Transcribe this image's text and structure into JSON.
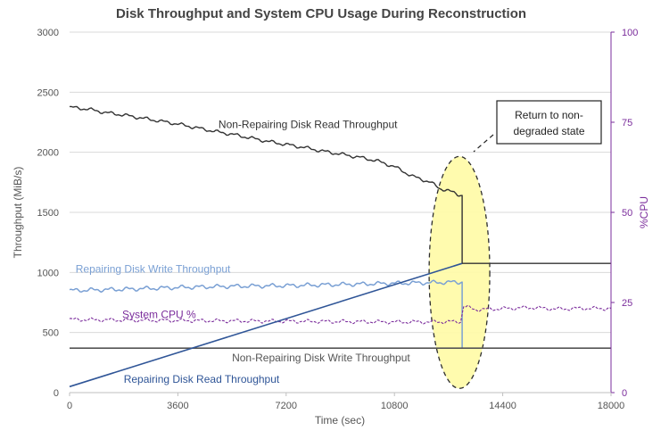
{
  "chart_data": {
    "type": "line",
    "title": "Disk Throughput and System CPU Usage During Reconstruction",
    "xlabel": "Time (sec)",
    "ylabel": "Throughput (MiB/s)",
    "y2label": "%CPU",
    "xlim": [
      0,
      18000
    ],
    "ylim": [
      0,
      3000
    ],
    "y2lim": [
      0,
      100
    ],
    "x_ticks": [
      0,
      3600,
      7200,
      10800,
      14400,
      18000
    ],
    "y_ticks": [
      0,
      500,
      1000,
      1500,
      2000,
      2500,
      3000
    ],
    "y2_ticks": [
      0,
      25,
      50,
      75,
      100
    ],
    "grid": "horizontal",
    "series": [
      {
        "name": "Non-Repairing Disk Read Throughput",
        "axis": "left",
        "color": "#333333",
        "points": [
          [
            0,
            2375
          ],
          [
            600,
            2360
          ],
          [
            1200,
            2330
          ],
          [
            1800,
            2310
          ],
          [
            2400,
            2285
          ],
          [
            3000,
            2260
          ],
          [
            3600,
            2235
          ],
          [
            4200,
            2205
          ],
          [
            4800,
            2175
          ],
          [
            5400,
            2150
          ],
          [
            6000,
            2120
          ],
          [
            6600,
            2090
          ],
          [
            7200,
            2065
          ],
          [
            7800,
            2040
          ],
          [
            8400,
            2010
          ],
          [
            9000,
            1985
          ],
          [
            9600,
            1960
          ],
          [
            10200,
            1930
          ],
          [
            10800,
            1880
          ],
          [
            11400,
            1800
          ],
          [
            12000,
            1750
          ],
          [
            12300,
            1700
          ],
          [
            12600,
            1680
          ],
          [
            12900,
            1650
          ],
          [
            13000,
            1645
          ],
          [
            13050,
            1640
          ],
          [
            13050,
            1075
          ],
          [
            18000,
            1075
          ]
        ],
        "label_pos": [
          4950,
          2200
        ]
      },
      {
        "name": "Repairing Disk Write Throughput",
        "axis": "left",
        "color": "#7aa0d4",
        "points": [
          [
            0,
            850
          ],
          [
            1800,
            860
          ],
          [
            3600,
            875
          ],
          [
            5400,
            885
          ],
          [
            7200,
            890
          ],
          [
            9000,
            900
          ],
          [
            10800,
            910
          ],
          [
            12000,
            915
          ],
          [
            13000,
            920
          ],
          [
            13050,
            920
          ],
          [
            13050,
            370
          ]
        ],
        "label_pos": [
          200,
          1000
        ]
      },
      {
        "name": "System CPU %",
        "axis": "right",
        "color": "#7b2d9c",
        "points": [
          [
            0,
            20.3
          ],
          [
            1800,
            20.1
          ],
          [
            3600,
            20.0
          ],
          [
            5400,
            19.9
          ],
          [
            7200,
            19.8
          ],
          [
            9000,
            19.7
          ],
          [
            10800,
            19.6
          ],
          [
            12000,
            19.6
          ],
          [
            13000,
            19.7
          ],
          [
            13100,
            24.0
          ],
          [
            13500,
            23.0
          ],
          [
            14400,
            23.3
          ],
          [
            15300,
            23.6
          ],
          [
            16200,
            23.2
          ],
          [
            17100,
            23.4
          ],
          [
            18000,
            23.3
          ]
        ],
        "label_pos": [
          1750,
          620
        ]
      },
      {
        "name": "Non-Repairing Disk Write Throughput",
        "axis": "left",
        "color": "#555555",
        "points": [
          [
            0,
            370
          ],
          [
            18000,
            370
          ]
        ],
        "label_pos": [
          5400,
          260
        ]
      },
      {
        "name": "Repairing Disk Read Throughput",
        "axis": "left",
        "color": "#2f5597",
        "points": [
          [
            0,
            50
          ],
          [
            13050,
            1075
          ]
        ],
        "label_pos": [
          1800,
          80
        ]
      }
    ],
    "annotation": {
      "text_line1": "Return to non-",
      "text_line2": "degraded state"
    }
  }
}
